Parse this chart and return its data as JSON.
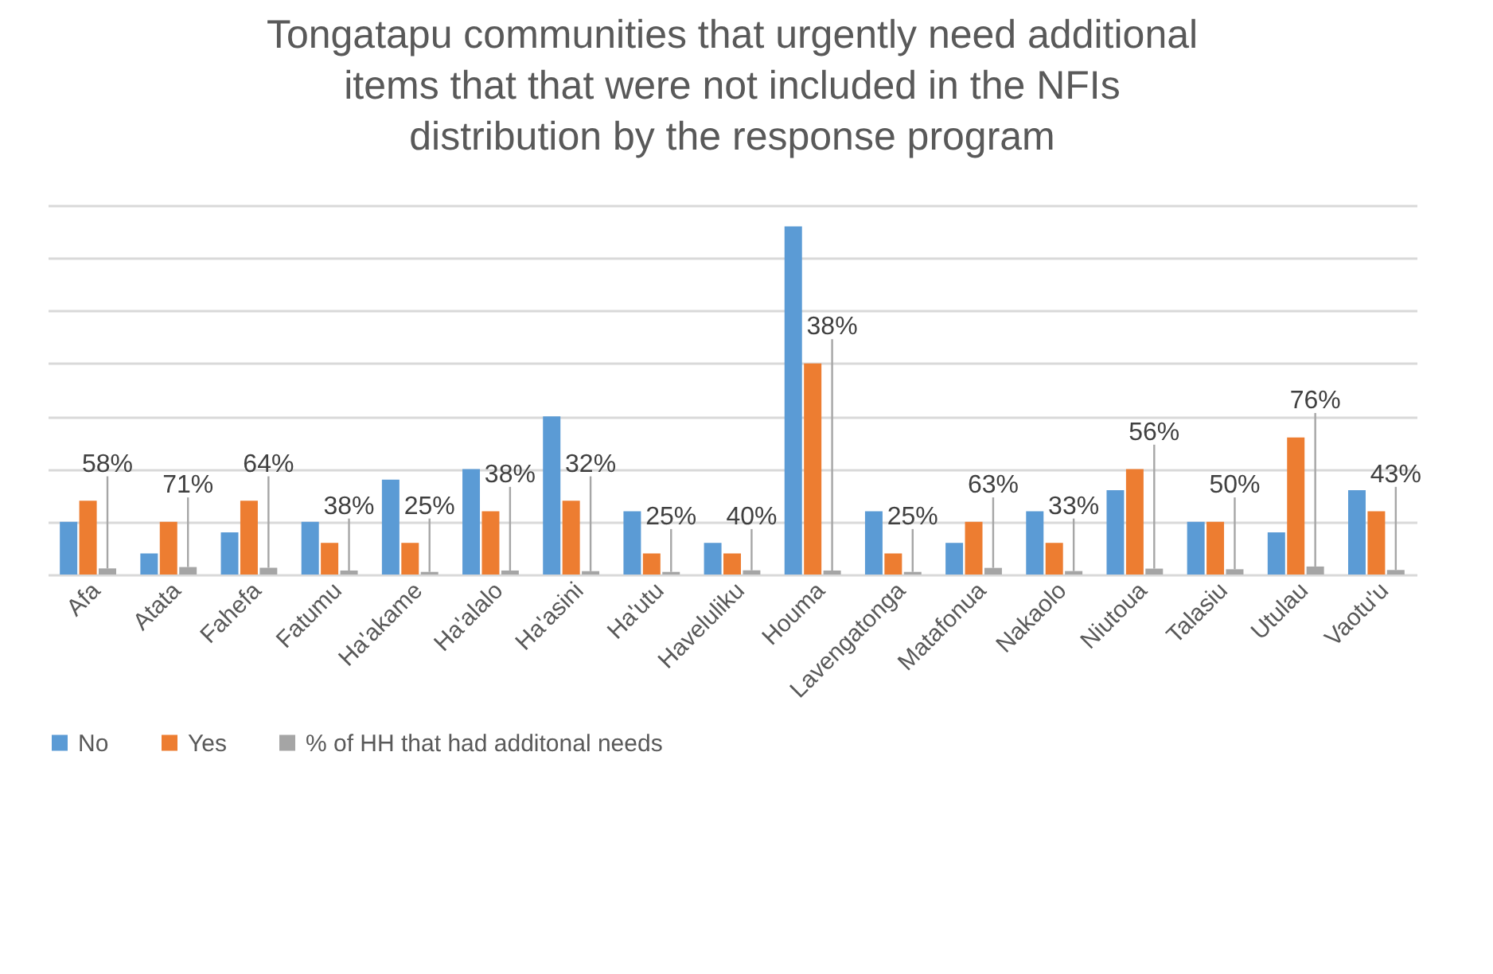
{
  "chart_data": {
    "type": "bar",
    "title": "Tongatapu communities that urgently need additional items that that were not included in the NFIs distribution by the response program",
    "grid": "y",
    "legend": "bottom",
    "tick_labels": "x",
    "categories": [
      "Afa",
      "Atata",
      "Fahefa",
      "Fatumu",
      "Ha'akame",
      "Ha'alalo",
      "Ha'asini",
      "Ha'utu",
      "Haveluliku",
      "Houma",
      "Lavengatonga",
      "Matafonua",
      "Nakaolo",
      "Niutoua",
      "Talasiu",
      "Utulau",
      "Vaotu'u"
    ],
    "series": [
      {
        "name": "No",
        "color": "#5b9bd5",
        "values": [
          5,
          2,
          4,
          5,
          9,
          10,
          15,
          6,
          3,
          33,
          6,
          3,
          6,
          8,
          5,
          4,
          8
        ]
      },
      {
        "name": "Yes",
        "color": "#ed7d31",
        "values": [
          7,
          5,
          7,
          3,
          3,
          6,
          7,
          2,
          2,
          20,
          2,
          5,
          3,
          10,
          5,
          13,
          6
        ]
      },
      {
        "name": "% of HH that had additonal needs",
        "color": "#a5a5a5",
        "values": [
          0.58,
          0.71,
          0.64,
          0.38,
          0.25,
          0.38,
          0.32,
          0.25,
          0.4,
          0.38,
          0.25,
          0.63,
          0.33,
          0.56,
          0.5,
          0.76,
          0.43
        ],
        "value_labels": [
          "58%",
          "71%",
          "64%",
          "38%",
          "25%",
          "38%",
          "32%",
          "25%",
          "40%",
          "38%",
          "25%",
          "63%",
          "33%",
          "56%",
          "50%",
          "76%",
          "43%"
        ]
      }
    ]
  }
}
